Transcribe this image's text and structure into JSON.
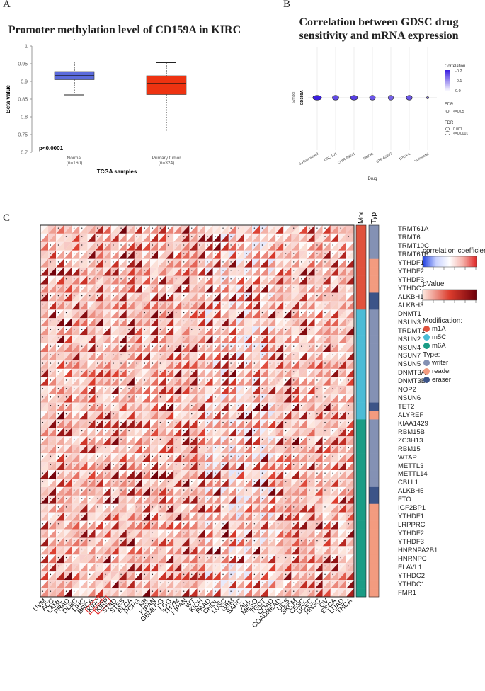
{
  "panelA": {
    "label": "A",
    "title": "Promoter methylation level of CD159A in KIRC",
    "ylabel": "Beta value",
    "xlabel": "TCGA samples",
    "pvalue": "p<0.0001",
    "yticks": [
      "0.7",
      "0.75",
      "0.8",
      "0.85",
      "0.9",
      "0.95",
      "1"
    ],
    "groups": [
      {
        "name": "Normal",
        "n": "(n=160)",
        "color": "#5b6bdc",
        "q1": 0.905,
        "median": 0.916,
        "q3": 0.928,
        "wmin": 0.862,
        "wmax": 0.955
      },
      {
        "name": "Primary tumor",
        "n": "(n=324)",
        "color": "#ee3311",
        "q1": 0.863,
        "median": 0.894,
        "q3": 0.916,
        "wmin": 0.757,
        "wmax": 0.953
      }
    ]
  },
  "panelB": {
    "label": "B",
    "title_line1": "Correlation between GDSC drug",
    "title_line2": "sensitivity and mRNA expression",
    "ylabel": "Symbol",
    "gene": "CD159A",
    "xlabel": "Drug",
    "drugs": [
      "5-Fluorouracil",
      "CAL-101",
      "CHIR-99021",
      "DMOG",
      "STF-62247",
      "TPCA-1",
      "Vorinostat"
    ],
    "correlations": [
      -0.2,
      -0.16,
      -0.17,
      -0.15,
      -0.14,
      -0.15,
      -0.12
    ],
    "legend": {
      "corr_title": "Correlation",
      "corr_ticks": [
        "-0.2",
        "-0.1",
        "0.0"
      ],
      "fdr1_title": "FDR",
      "fdr1_item": "<=0.05",
      "fdr2_title": "FDR",
      "fdr2_items": [
        "0.001",
        "<=0.0001"
      ]
    }
  },
  "panelC": {
    "label": "C",
    "header_mod": "Modification",
    "header_type": "Type",
    "genes": [
      "TRMT61A",
      "TRMT6",
      "TRMT10C",
      "TRMT61B",
      "YTHDF1",
      "YTHDF2",
      "YTHDF3",
      "YTHDC1",
      "ALKBH1",
      "ALKBH3",
      "DNMT1",
      "NSUN3",
      "TRDMT1",
      "NSUN2",
      "NSUN4",
      "NSUN7",
      "NSUN5",
      "DNMT3A",
      "DNMT3B",
      "NOP2",
      "NSUN6",
      "TET2",
      "ALYREF",
      "KIAA1429",
      "RBM15B",
      "ZC3H13",
      "RBM15",
      "WTAP",
      "METTL3",
      "METTL14",
      "CBLL1",
      "ALKBH5",
      "FTO",
      "IGF2BP1",
      "YTHDF1",
      "LRPPRC",
      "YTHDF2",
      "YTHDF3",
      "HNRNPA2B1",
      "HNRNPC",
      "ELAVL1",
      "YTHDC2",
      "YTHDC1",
      "FMR1"
    ],
    "modification": [
      "m1A",
      "m1A",
      "m1A",
      "m1A",
      "m1A",
      "m1A",
      "m1A",
      "m1A",
      "m1A",
      "m1A",
      "m5C",
      "m5C",
      "m5C",
      "m5C",
      "m5C",
      "m5C",
      "m5C",
      "m5C",
      "m5C",
      "m5C",
      "m5C",
      "m5C",
      "m5C",
      "m6A",
      "m6A",
      "m6A",
      "m6A",
      "m6A",
      "m6A",
      "m6A",
      "m6A",
      "m6A",
      "m6A",
      "m6A",
      "m6A",
      "m6A",
      "m6A",
      "m6A",
      "m6A",
      "m6A",
      "m6A",
      "m6A",
      "m6A",
      "m6A"
    ],
    "type": [
      "writer",
      "writer",
      "writer",
      "writer",
      "reader",
      "reader",
      "reader",
      "reader",
      "eraser",
      "eraser",
      "writer",
      "writer",
      "writer",
      "writer",
      "writer",
      "writer",
      "writer",
      "writer",
      "writer",
      "writer",
      "writer",
      "eraser",
      "reader",
      "writer",
      "writer",
      "writer",
      "writer",
      "writer",
      "writer",
      "writer",
      "writer",
      "eraser",
      "eraser",
      "reader",
      "reader",
      "reader",
      "reader",
      "reader",
      "reader",
      "reader",
      "reader",
      "reader",
      "reader",
      "reader"
    ],
    "cancers": [
      "UVM",
      "ACC",
      "LAML",
      "PRAD",
      "DLBC",
      "LIHC",
      "BRCA",
      "KIRC",
      "KIRP",
      "STAD",
      "STES",
      "BLCA",
      "PCPG",
      "NB",
      "KIPAN",
      "GBMLGG",
      "LGG",
      "THYM",
      "KIPAN",
      "WT",
      "KICH",
      "PAAD",
      "CHOL",
      "LUSC",
      "GBM",
      "SARC",
      "ALL",
      "MESO",
      "TGCT",
      "COAD",
      "COADREAD",
      "UCS",
      "SKCM",
      "CESC",
      "UCEC",
      "HNSC",
      "OV",
      "ESCA",
      "LUAD",
      "THCA"
    ],
    "highlight": [
      "KIRC",
      "KIRP"
    ],
    "legend": {
      "corr_title": "correlation coefficient",
      "pval_title": "pValue",
      "mod_title": "Modification:",
      "mods": [
        {
          "name": "m1A",
          "color": "#e0523d"
        },
        {
          "name": "m5C",
          "color": "#4bbcd6"
        },
        {
          "name": "m6A",
          "color": "#1a9c85"
        }
      ],
      "type_title": "Type:",
      "types": [
        {
          "name": "writer",
          "color": "#8491b4"
        },
        {
          "name": "reader",
          "color": "#f39b7f"
        },
        {
          "name": "eraser",
          "color": "#3c5488"
        }
      ]
    },
    "seed": 20240
  }
}
